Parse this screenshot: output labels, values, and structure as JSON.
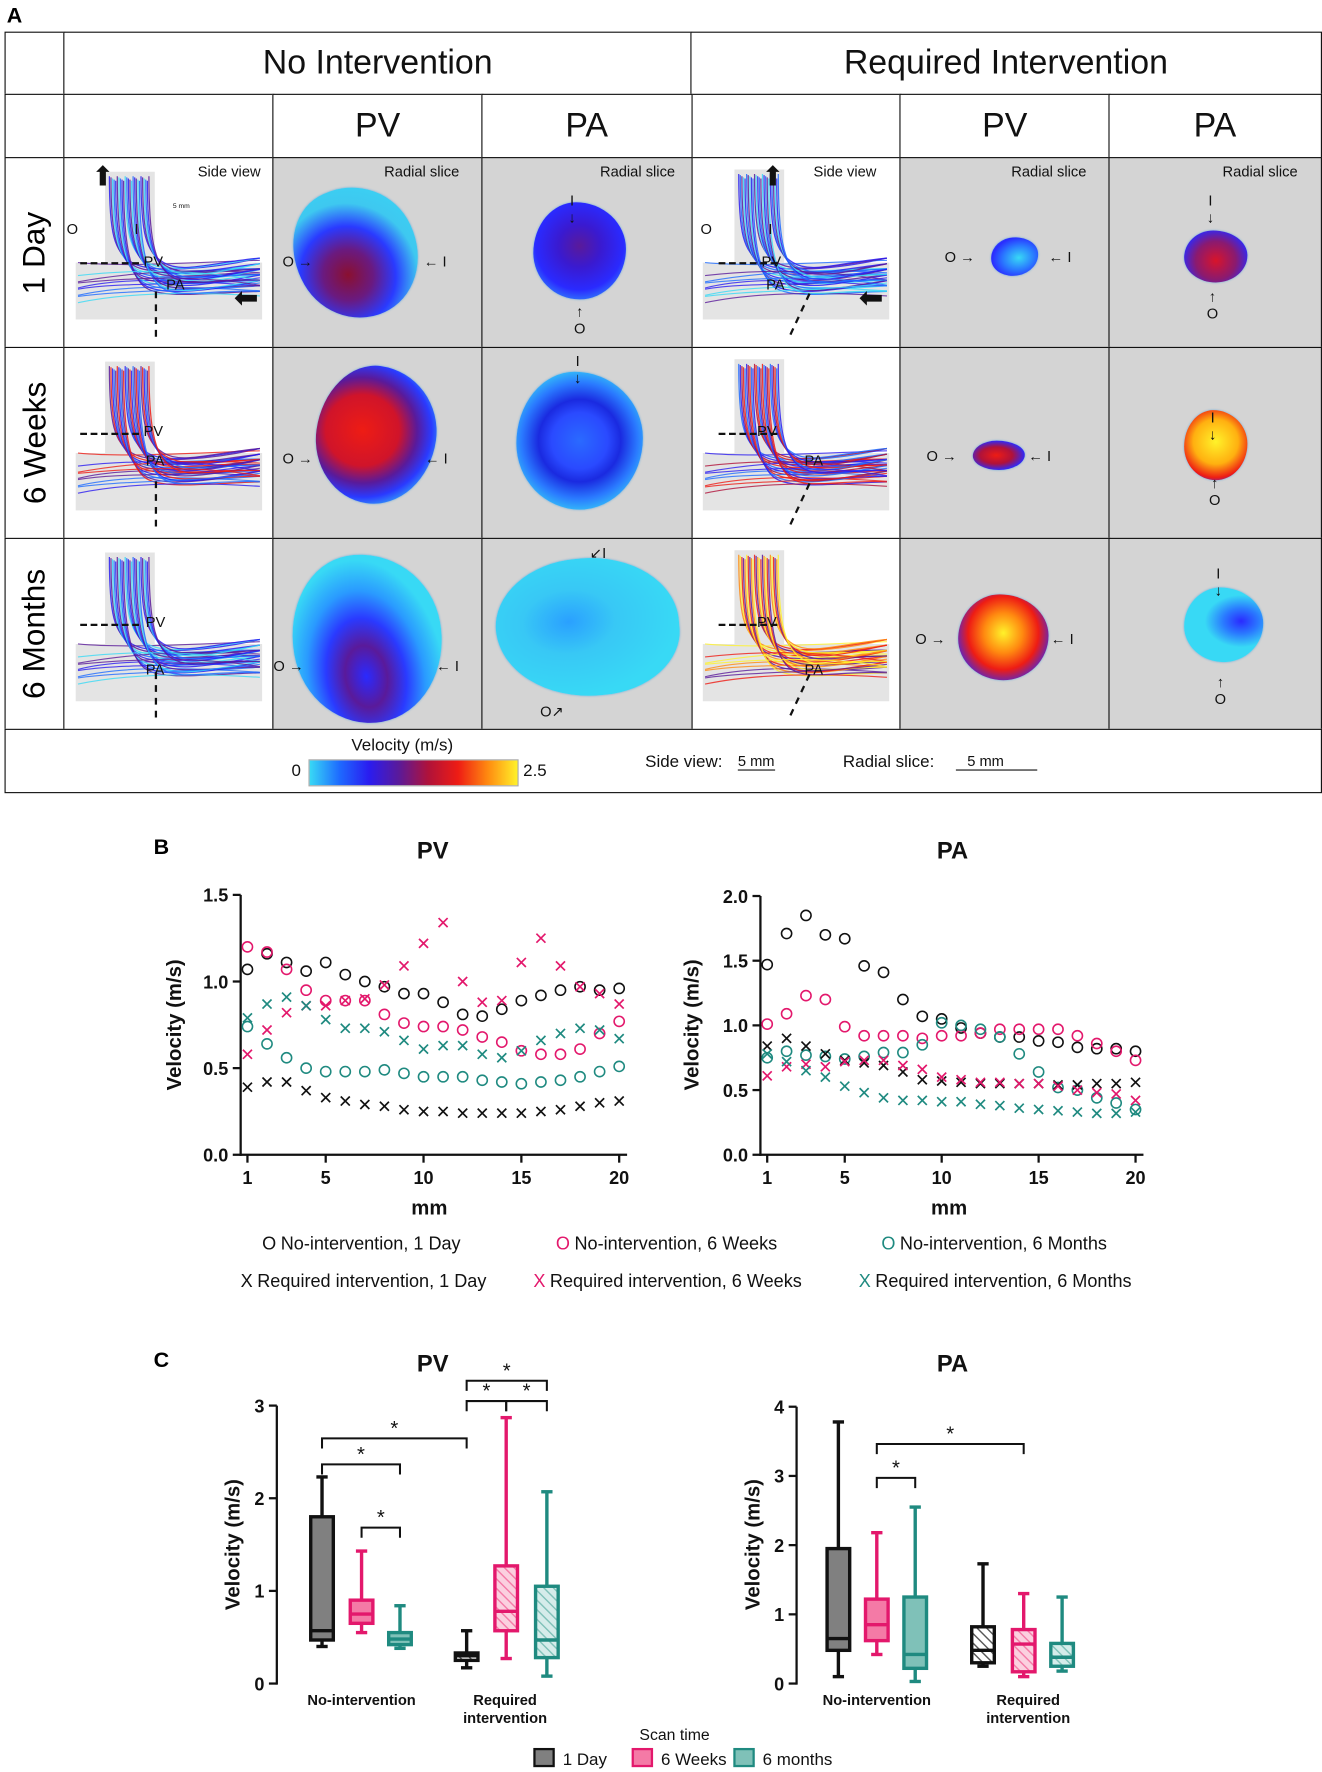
{
  "panel_letters": {
    "a": "A",
    "b": "B",
    "c": "C"
  },
  "panel_a": {
    "groups": [
      "No Intervention",
      "Required Intervention"
    ],
    "columns": [
      "PV",
      "PA",
      "PV",
      "PA"
    ],
    "rows": [
      "1 Day",
      "6 Weeks",
      "6 Months"
    ],
    "labels": {
      "side_view": "Side view",
      "radial_slice": "Radial slice",
      "outlet": "O",
      "inlet": "I",
      "pv": "PV",
      "pa": "PA",
      "scale_small": "5 mm"
    },
    "footer": {
      "colorbar_title": "Velocity (m/s)",
      "colorbar_min": "0",
      "colorbar_max": "2.5",
      "colorbar_colors": [
        "#38d9f5",
        "#1e6bff",
        "#2a1cf0",
        "#5a1a9a",
        "#b0123a",
        "#ee1c14",
        "#ff8a10",
        "#fff22a"
      ],
      "side_view_label": "Side view:",
      "side_view_scale": "5 mm",
      "radial_label": "Radial slice:",
      "radial_scale": "5 mm"
    }
  },
  "chart_data": [
    {
      "type": "scatter",
      "panel": "B",
      "title": "PV",
      "xlabel": "mm",
      "ylabel": "Velocity (m/s)",
      "xlim": [
        1,
        20
      ],
      "ylim": [
        0,
        1.5
      ],
      "xticks": [
        "1",
        "5",
        "10",
        "15",
        "20"
      ],
      "yticks": [
        "0.0",
        "0.5",
        "1.0",
        "1.5"
      ],
      "x": [
        1,
        2,
        3,
        4,
        5,
        6,
        7,
        8,
        9,
        10,
        11,
        12,
        13,
        14,
        15,
        16,
        17,
        18,
        19,
        20
      ],
      "series": [
        {
          "name": "No-intervention, 1 Day",
          "marker": "O",
          "color": "#111111",
          "values": [
            1.07,
            1.16,
            1.11,
            1.06,
            1.11,
            1.04,
            1.0,
            0.97,
            0.93,
            0.93,
            0.88,
            0.81,
            0.8,
            0.84,
            0.89,
            0.92,
            0.95,
            0.97,
            0.95,
            0.96
          ]
        },
        {
          "name": "No-intervention, 6 Weeks",
          "marker": "O",
          "color": "#e3186c",
          "values": [
            1.2,
            1.17,
            1.07,
            0.95,
            0.89,
            0.89,
            0.89,
            0.81,
            0.76,
            0.74,
            0.74,
            0.72,
            0.68,
            0.65,
            0.6,
            0.58,
            0.58,
            0.61,
            0.7,
            0.77
          ]
        },
        {
          "name": "No-intervention, 6 Months",
          "marker": "O",
          "color": "#1f8a80",
          "values": [
            0.74,
            0.64,
            0.56,
            0.5,
            0.48,
            0.48,
            0.48,
            0.49,
            0.47,
            0.45,
            0.45,
            0.45,
            0.43,
            0.42,
            0.41,
            0.42,
            0.43,
            0.45,
            0.48,
            0.51
          ]
        },
        {
          "name": "Required intervention, 1 Day",
          "marker": "X",
          "color": "#111111",
          "values": [
            0.39,
            0.42,
            0.42,
            0.37,
            0.33,
            0.31,
            0.29,
            0.28,
            0.26,
            0.25,
            0.25,
            0.24,
            0.24,
            0.24,
            0.24,
            0.25,
            0.26,
            0.28,
            0.3,
            0.31
          ]
        },
        {
          "name": "Required intervention, 6 Weeks",
          "marker": "X",
          "color": "#e3186c",
          "values": [
            0.58,
            0.72,
            0.82,
            0.86,
            0.86,
            0.89,
            0.9,
            0.98,
            1.09,
            1.22,
            1.34,
            1.0,
            0.88,
            0.89,
            1.11,
            1.25,
            1.09,
            0.97,
            0.93,
            0.87
          ]
        },
        {
          "name": "Required intervention, 6 Months",
          "marker": "X",
          "color": "#1f8a80",
          "values": [
            0.79,
            0.87,
            0.91,
            0.86,
            0.78,
            0.73,
            0.73,
            0.71,
            0.66,
            0.61,
            0.63,
            0.63,
            0.58,
            0.56,
            0.6,
            0.66,
            0.7,
            0.73,
            0.72,
            0.67
          ]
        }
      ]
    },
    {
      "type": "scatter",
      "panel": "B",
      "title": "PA",
      "xlabel": "mm",
      "ylabel": "Velocity (m/s)",
      "xlim": [
        1,
        20
      ],
      "ylim": [
        0,
        2.0
      ],
      "xticks": [
        "1",
        "5",
        "10",
        "15",
        "20"
      ],
      "yticks": [
        "0.0",
        "0.5",
        "1.0",
        "1.5",
        "2.0"
      ],
      "x": [
        1,
        2,
        3,
        4,
        5,
        6,
        7,
        8,
        9,
        10,
        11,
        12,
        13,
        14,
        15,
        16,
        17,
        18,
        19,
        20
      ],
      "series": [
        {
          "name": "No-intervention, 1 Day",
          "marker": "O",
          "color": "#111111",
          "values": [
            1.47,
            1.71,
            1.85,
            1.7,
            1.67,
            1.46,
            1.41,
            1.2,
            1.07,
            1.05,
            0.98,
            0.94,
            0.91,
            0.91,
            0.88,
            0.87,
            0.83,
            0.82,
            0.82,
            0.8
          ]
        },
        {
          "name": "No-intervention, 6 Weeks",
          "marker": "O",
          "color": "#e3186c",
          "values": [
            1.01,
            1.09,
            1.23,
            1.2,
            0.99,
            0.92,
            0.92,
            0.92,
            0.9,
            0.92,
            0.92,
            0.94,
            0.97,
            0.97,
            0.97,
            0.97,
            0.92,
            0.86,
            0.8,
            0.73
          ]
        },
        {
          "name": "No-intervention, 6 Months",
          "marker": "O",
          "color": "#1f8a80",
          "values": [
            0.75,
            0.8,
            0.77,
            0.76,
            0.74,
            0.76,
            0.79,
            0.79,
            0.85,
            1.02,
            1.0,
            0.97,
            0.91,
            0.78,
            0.64,
            0.52,
            0.5,
            0.44,
            0.4,
            0.35
          ]
        },
        {
          "name": "Required intervention, 1 Day",
          "marker": "X",
          "color": "#111111",
          "values": [
            0.84,
            0.9,
            0.84,
            0.78,
            0.73,
            0.71,
            0.69,
            0.64,
            0.58,
            0.57,
            0.56,
            0.55,
            0.55,
            0.55,
            0.55,
            0.54,
            0.54,
            0.55,
            0.55,
            0.56
          ]
        },
        {
          "name": "Required intervention, 6 Weeks",
          "marker": "X",
          "color": "#e3186c",
          "values": [
            0.61,
            0.68,
            0.7,
            0.68,
            0.72,
            0.73,
            0.73,
            0.69,
            0.66,
            0.6,
            0.58,
            0.56,
            0.56,
            0.55,
            0.55,
            0.53,
            0.5,
            0.48,
            0.47,
            0.42
          ]
        },
        {
          "name": "Required intervention, 6 Months",
          "marker": "X",
          "color": "#1f8a80",
          "values": [
            0.78,
            0.72,
            0.65,
            0.6,
            0.53,
            0.48,
            0.44,
            0.42,
            0.42,
            0.41,
            0.41,
            0.39,
            0.38,
            0.36,
            0.35,
            0.34,
            0.33,
            0.32,
            0.32,
            0.33
          ]
        }
      ]
    },
    {
      "type": "box",
      "panel": "C",
      "title": "PV",
      "ylabel": "Velocity (m/s)",
      "ylim": [
        0,
        3
      ],
      "yticks": [
        "0",
        "1",
        "2",
        "3"
      ],
      "groups": [
        "No-intervention",
        "Required intervention"
      ],
      "boxes": [
        {
          "group": 0,
          "scan": "1 Day",
          "min": 0.4,
          "q1": 0.47,
          "median": 0.57,
          "q3": 1.8,
          "max": 2.23
        },
        {
          "group": 0,
          "scan": "6 Weeks",
          "min": 0.55,
          "q1": 0.65,
          "median": 0.75,
          "q3": 0.9,
          "max": 1.43
        },
        {
          "group": 0,
          "scan": "6 months",
          "min": 0.38,
          "q1": 0.42,
          "median": 0.48,
          "q3": 0.55,
          "max": 0.84
        },
        {
          "group": 1,
          "scan": "1 Day",
          "min": 0.17,
          "q1": 0.25,
          "median": 0.3,
          "q3": 0.33,
          "max": 0.57
        },
        {
          "group": 1,
          "scan": "6 Weeks",
          "min": 0.27,
          "q1": 0.57,
          "median": 0.78,
          "q3": 1.27,
          "max": 2.87
        },
        {
          "group": 1,
          "scan": "6 months",
          "min": 0.08,
          "q1": 0.28,
          "median": 0.47,
          "q3": 1.05,
          "max": 2.07
        }
      ],
      "significance": [
        {
          "from": 0,
          "to": 2,
          "label": "*"
        },
        {
          "from": 0,
          "to": 3,
          "label": "*"
        },
        {
          "from": 1,
          "to": 2,
          "label": "*"
        },
        {
          "from": 3,
          "to": 4,
          "label": "*"
        },
        {
          "from": 4,
          "to": 5,
          "label": "*"
        },
        {
          "from": 3,
          "to": 5,
          "label": "*"
        }
      ]
    },
    {
      "type": "box",
      "panel": "C",
      "title": "PA",
      "ylabel": "Velocity (m/s)",
      "ylim": [
        0,
        4
      ],
      "yticks": [
        "0",
        "1",
        "2",
        "3",
        "4"
      ],
      "groups": [
        "No-intervention",
        "Required intervention"
      ],
      "boxes": [
        {
          "group": 0,
          "scan": "1 Day",
          "min": 0.1,
          "q1": 0.48,
          "median": 0.65,
          "q3": 1.95,
          "max": 3.78
        },
        {
          "group": 0,
          "scan": "6 Weeks",
          "min": 0.42,
          "q1": 0.62,
          "median": 0.85,
          "q3": 1.22,
          "max": 2.18
        },
        {
          "group": 0,
          "scan": "6 months",
          "min": 0.03,
          "q1": 0.22,
          "median": 0.42,
          "q3": 1.25,
          "max": 2.55
        },
        {
          "group": 1,
          "scan": "1 Day",
          "min": 0.25,
          "q1": 0.3,
          "median": 0.48,
          "q3": 0.82,
          "max": 1.73
        },
        {
          "group": 1,
          "scan": "6 Weeks",
          "min": 0.1,
          "q1": 0.17,
          "median": 0.57,
          "q3": 0.78,
          "max": 1.3
        },
        {
          "group": 1,
          "scan": "6 months",
          "min": 0.18,
          "q1": 0.25,
          "median": 0.38,
          "q3": 0.58,
          "max": 1.25
        }
      ],
      "significance": [
        {
          "from": 1,
          "to": 2,
          "label": "*"
        },
        {
          "from": 1,
          "to": 4,
          "label": "*"
        }
      ]
    }
  ],
  "legend_c": {
    "title": "Scan time",
    "items": [
      {
        "label": "1 Day",
        "fill": "#808080",
        "stroke": "#111111"
      },
      {
        "label": "6 Weeks",
        "fill": "#f47aa6",
        "stroke": "#e3186c"
      },
      {
        "label": "6 months",
        "fill": "#7fc1b8",
        "stroke": "#1f8a80"
      }
    ]
  }
}
